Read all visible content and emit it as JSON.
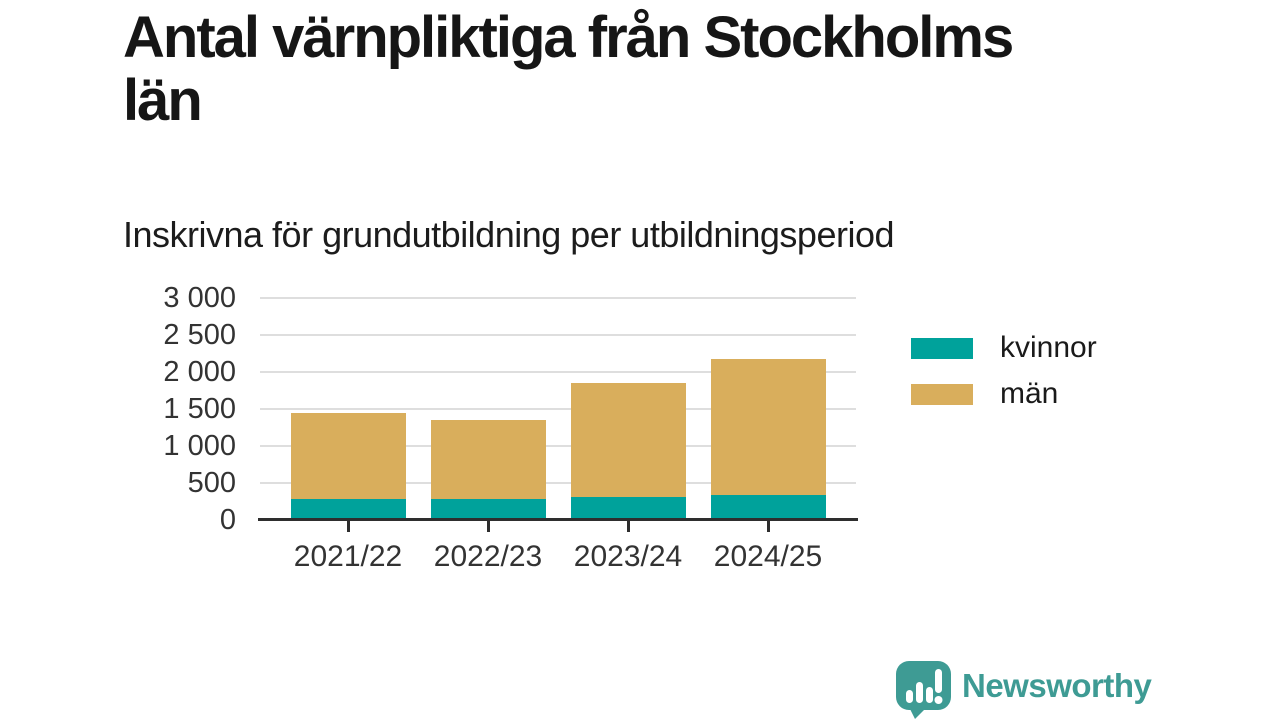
{
  "page": {
    "background": "#ffffff"
  },
  "header": {
    "title_line1": "Antal värnpliktiga från Stockholms",
    "title_line2": "län",
    "subtitle": "Inskrivna för grundutbildning per utbildningsperiod"
  },
  "chart_data": {
    "type": "bar",
    "stacked": true,
    "title": "Antal värnpliktiga från Stockholms län",
    "subtitle": "Inskrivna för grundutbildning per utbildningsperiod",
    "categories": [
      "2021/22",
      "2022/23",
      "2023/24",
      "2024/25"
    ],
    "series": [
      {
        "name": "kvinnor",
        "color": "#00a29b",
        "values": [
          290,
          280,
          315,
          335
        ]
      },
      {
        "name": "män",
        "color": "#d9ae5c",
        "values": [
          1150,
          1070,
          1540,
          1845
        ]
      }
    ],
    "stacked_totals": [
      1440,
      1350,
      1855,
      2180
    ],
    "ylim": [
      0,
      3000
    ],
    "yticks": [
      {
        "value": 0,
        "label": "0"
      },
      {
        "value": 500,
        "label": "500"
      },
      {
        "value": 1000,
        "label": "1 000"
      },
      {
        "value": 1500,
        "label": "1 500"
      },
      {
        "value": 2000,
        "label": "2 000"
      },
      {
        "value": 2500,
        "label": "2 500"
      },
      {
        "value": 3000,
        "label": "3 000"
      }
    ],
    "grid": true,
    "legend_position": "right"
  },
  "colors": {
    "grid": "#dedede",
    "axis": "#2e2e2e",
    "tick_label": "#333333",
    "brand_teal": "#3e9b94"
  },
  "logo": {
    "wordmark": "Newsworthy",
    "icon": "newsworthy-speech-bubble-chart-icon"
  }
}
